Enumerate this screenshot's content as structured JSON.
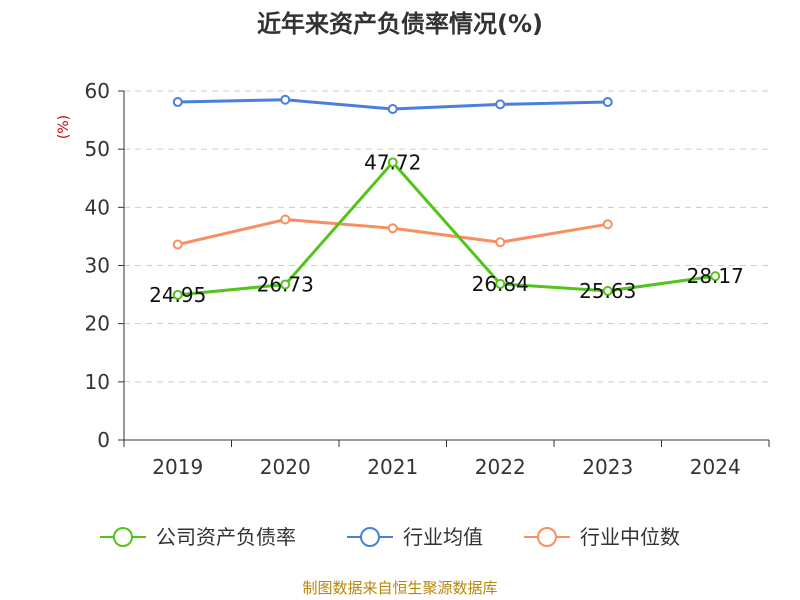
{
  "chart_data": {
    "type": "line",
    "title": "近年来资产负债率情况(%)",
    "ylabel": "(%)",
    "ylim": [
      0,
      60
    ],
    "yticks": [
      0,
      10,
      20,
      30,
      40,
      50,
      60
    ],
    "grid": true,
    "legend_position": "bottom",
    "categories": [
      "2019",
      "2020",
      "2021",
      "2022",
      "2023",
      "2024"
    ],
    "series": [
      {
        "name": "公司资产负债率",
        "color": "#52c41a",
        "values": [
          24.95,
          26.73,
          47.72,
          26.84,
          25.63,
          28.17
        ],
        "data_labels": [
          "24.95",
          "26.73",
          "47.72",
          "26.84",
          "25.63",
          "28.17"
        ]
      },
      {
        "name": "行业均值",
        "color": "#4a7fdb",
        "values": [
          58.1,
          58.5,
          56.9,
          57.7,
          58.1,
          null
        ]
      },
      {
        "name": "行业中位数",
        "color": "#f79060",
        "values": [
          33.6,
          37.9,
          36.4,
          34.0,
          37.1,
          null
        ]
      }
    ],
    "source": "制图数据来自恒生聚源数据库"
  }
}
